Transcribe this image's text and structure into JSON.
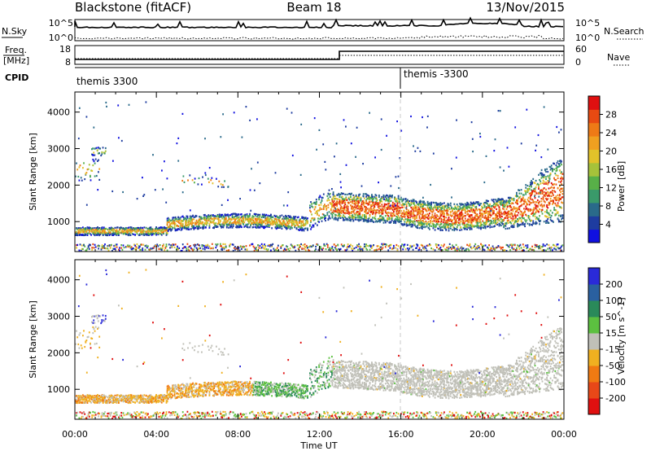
{
  "header": {
    "station": "Blackstone (fitACF)",
    "beam": "Beam 18",
    "date": "13/Nov/2015"
  },
  "noise_panel": {
    "left_label": "N.Sky",
    "right_label": "N.Search",
    "tick_top": "10^5",
    "tick_bottom": "10^0"
  },
  "freq_panel": {
    "left_label": "Freq.",
    "left_unit": "[MHz]",
    "left_ticks": [
      "18",
      "8"
    ],
    "right_label": "Nave",
    "right_ticks": [
      "60",
      "0"
    ]
  },
  "cpid_panel": {
    "label": "CPID",
    "segments": [
      {
        "start_hour": 0,
        "text": "themis 3300"
      },
      {
        "start_hour": 16,
        "text": "themis -3300"
      }
    ]
  },
  "axes": {
    "x_ticks": [
      "00:00",
      "04:00",
      "08:00",
      "12:00",
      "16:00",
      "20:00",
      "00:00"
    ],
    "x_tick_hours": [
      0,
      4,
      8,
      12,
      16,
      20,
      24
    ],
    "x_label": "Time UT",
    "y_label": "Slant Range [km]",
    "y_ticks": [
      "1000",
      "2000",
      "3000",
      "4000"
    ],
    "y_tick_values": [
      1000,
      2000,
      3000,
      4000
    ],
    "y_range_km": [
      180,
      4550
    ]
  },
  "chart_data": [
    {
      "type": "heatmap",
      "name_label": "Power",
      "unit_label": "[dB]",
      "x_range_hours": [
        0,
        24
      ],
      "y_range_km": [
        180,
        4550
      ],
      "colorbar": {
        "labels": [
          "4",
          "8",
          "12",
          "16",
          "20",
          "24",
          "28"
        ],
        "colors": [
          "#1010e0",
          "#1e3ca0",
          "#2a6a8a",
          "#3a9a6a",
          "#58b048",
          "#a6c23a",
          "#e2c22a",
          "#f0a020",
          "#ee7a16",
          "#e84a12",
          "#e01010"
        ]
      }
    },
    {
      "type": "heatmap",
      "name_label": "Velocity",
      "unit_label": "[m s^-1]",
      "x_range_hours": [
        0,
        24
      ],
      "y_range_km": [
        180,
        4550
      ],
      "colorbar": {
        "labels": [
          "200",
          "100",
          "50",
          "15",
          "-15",
          "-50",
          "-100",
          "-200"
        ],
        "colors": [
          "#2a2ad8",
          "#2a60a0",
          "#2a8a5a",
          "#5cc040",
          "#c0c0b8",
          "#f0b020",
          "#f07a12",
          "#e84818",
          "#e01010"
        ]
      }
    }
  ]
}
